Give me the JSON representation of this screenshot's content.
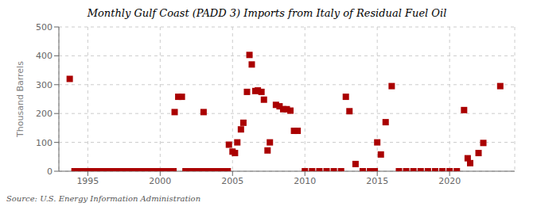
{
  "chart_data": {
    "type": "scatter",
    "title": "Monthly Gulf Coast (PADD 3) Imports from Italy of Residual Fuel Oil",
    "ylabel": "Thousand Barrels",
    "annotation": "Source: U.S. Energy Information Administration",
    "color": "#aa0000",
    "marker": "square",
    "grid": true,
    "xlim": [
      1993.0,
      2024.5
    ],
    "ylim": [
      0,
      500
    ],
    "xticks": [
      1995,
      2000,
      2005,
      2010,
      2015,
      2020
    ],
    "yticks": [
      0,
      100,
      200,
      300,
      400,
      500
    ],
    "x": [
      1993.75,
      1994.08,
      1994.17,
      1994.25,
      1994.33,
      1994.42,
      1994.5,
      1994.58,
      1994.67,
      1994.75,
      1994.83,
      1994.92,
      1995.0,
      1995.08,
      1995.17,
      1995.25,
      1995.33,
      1995.42,
      1995.5,
      1995.58,
      1995.67,
      1995.75,
      1995.83,
      1995.92,
      1996.0,
      1996.08,
      1996.17,
      1996.25,
      1996.33,
      1996.42,
      1996.5,
      1996.58,
      1996.67,
      1996.75,
      1996.83,
      1996.92,
      1997.0,
      1997.08,
      1997.17,
      1997.25,
      1997.33,
      1997.42,
      1997.5,
      1997.58,
      1997.67,
      1997.75,
      1997.83,
      1997.92,
      1998.0,
      1998.08,
      1998.17,
      1998.25,
      1998.33,
      1998.42,
      1998.5,
      1998.58,
      1998.67,
      1998.75,
      1998.83,
      1998.92,
      1999.0,
      1999.08,
      1999.17,
      1999.25,
      1999.33,
      1999.42,
      1999.5,
      1999.58,
      1999.67,
      1999.75,
      1999.83,
      1999.92,
      2000.0,
      2000.08,
      2000.17,
      2000.25,
      2000.33,
      2000.42,
      2000.5,
      2000.58,
      2000.67,
      2000.75,
      2000.83,
      2000.92,
      2001.0,
      2001.25,
      2001.5,
      2001.75,
      2001.92,
      2002.0,
      2002.08,
      2002.17,
      2002.25,
      2002.33,
      2002.42,
      2002.5,
      2002.58,
      2002.67,
      2002.75,
      2002.83,
      2002.92,
      2003.0,
      2003.17,
      2003.33,
      2003.5,
      2003.67,
      2003.83,
      2003.92,
      2004.0,
      2004.08,
      2004.17,
      2004.25,
      2004.33,
      2004.42,
      2004.5,
      2004.58,
      2004.67,
      2004.75,
      2005.0,
      2005.17,
      2005.33,
      2005.58,
      2005.75,
      2006.0,
      2006.17,
      2006.33,
      2006.58,
      2006.75,
      2007.0,
      2007.17,
      2007.42,
      2007.58,
      2008.0,
      2008.25,
      2008.5,
      2008.75,
      2009.0,
      2009.25,
      2009.5,
      2010.0,
      2010.5,
      2011.0,
      2011.5,
      2012.0,
      2012.5,
      2012.83,
      2013.08,
      2013.5,
      2014.0,
      2014.5,
      2014.83,
      2015.0,
      2015.25,
      2015.58,
      2016.0,
      2016.5,
      2017.0,
      2017.5,
      2018.0,
      2018.5,
      2019.0,
      2019.5,
      2020.0,
      2020.5,
      2021.0,
      2021.25,
      2021.42,
      2022.0,
      2022.33,
      2023.5
    ],
    "values": [
      320,
      0,
      0,
      0,
      0,
      0,
      0,
      0,
      0,
      0,
      0,
      0,
      0,
      0,
      0,
      0,
      0,
      0,
      0,
      0,
      0,
      0,
      0,
      0,
      0,
      0,
      0,
      0,
      0,
      0,
      0,
      0,
      0,
      0,
      0,
      0,
      0,
      0,
      0,
      0,
      0,
      0,
      0,
      0,
      0,
      0,
      0,
      0,
      0,
      0,
      0,
      0,
      0,
      0,
      0,
      0,
      0,
      0,
      0,
      0,
      0,
      0,
      0,
      0,
      0,
      0,
      0,
      0,
      0,
      0,
      0,
      0,
      0,
      0,
      0,
      0,
      0,
      0,
      0,
      0,
      0,
      0,
      0,
      0,
      205,
      258,
      258,
      0,
      0,
      0,
      0,
      0,
      0,
      0,
      0,
      0,
      0,
      0,
      0,
      0,
      0,
      205,
      0,
      0,
      0,
      0,
      0,
      0,
      0,
      0,
      0,
      0,
      0,
      0,
      0,
      0,
      0,
      92,
      68,
      63,
      100,
      145,
      168,
      275,
      403,
      370,
      278,
      280,
      275,
      248,
      72,
      100,
      230,
      225,
      215,
      215,
      210,
      140,
      140,
      0,
      0,
      0,
      0,
      0,
      0,
      258,
      208,
      25,
      0,
      0,
      0,
      100,
      58,
      170,
      295,
      0,
      0,
      0,
      0,
      0,
      0,
      0,
      0,
      0,
      212,
      45,
      28,
      63,
      98,
      295
    ]
  }
}
